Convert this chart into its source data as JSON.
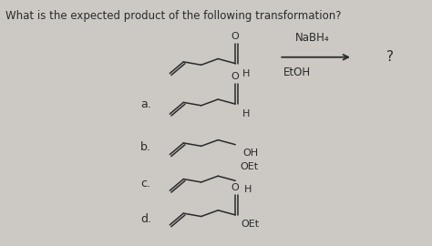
{
  "question": "What is the expected product of the following transformation?",
  "reagent_line1": "NaBH₄",
  "reagent_line2": "EtOH",
  "question_mark": "?",
  "choices": [
    "a.",
    "b.",
    "c.",
    "d."
  ],
  "bg_color": "#ccc9c4",
  "text_color": "#2a2a2a",
  "font_size_question": 8.5,
  "font_size_labels": 9,
  "font_size_reagent": 8.5,
  "font_size_atoms": 8
}
